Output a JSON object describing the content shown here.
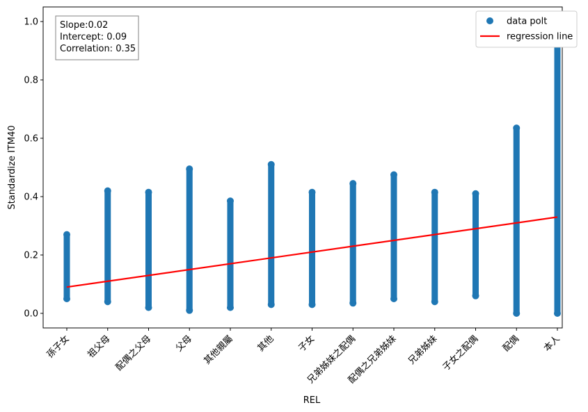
{
  "chart_data": {
    "type": "scatter",
    "xlabel": "REL",
    "ylabel": "Standardize ITM40",
    "ylim": [
      -0.05,
      1.05
    ],
    "y_ticks": [
      "0.0",
      "0.2",
      "0.4",
      "0.6",
      "0.8",
      "1.0"
    ],
    "categories": [
      "孫子女",
      "祖父母",
      "配偶之父母",
      "父母",
      "其他親屬",
      "其他",
      "子女",
      "兄弟姊妹之配偶",
      "配偶之兄弟姊妹",
      "兄弟姊妹",
      "子女之配偶",
      "配偶",
      "本人"
    ],
    "category_ranges": [
      [
        0.05,
        0.27
      ],
      [
        0.04,
        0.42
      ],
      [
        0.02,
        0.415
      ],
      [
        0.01,
        0.495
      ],
      [
        0.02,
        0.385
      ],
      [
        0.03,
        0.51
      ],
      [
        0.03,
        0.415
      ],
      [
        0.035,
        0.445
      ],
      [
        0.05,
        0.475
      ],
      [
        0.04,
        0.415
      ],
      [
        0.06,
        0.41
      ],
      [
        0.0,
        0.635
      ],
      [
        0.0,
        1.0
      ]
    ],
    "regression_line": {
      "y_start": 0.09,
      "y_end": 0.33
    },
    "series": [
      {
        "name": "data polt",
        "kind": "scatter",
        "color": "#1f77b4"
      },
      {
        "name": "regression line",
        "kind": "line",
        "color": "#ff0000"
      }
    ],
    "stats_text": [
      "Slope:0.02",
      "Intercept: 0.09",
      "Correlation: 0.35"
    ],
    "legend_position": "top-right",
    "grid": false
  }
}
